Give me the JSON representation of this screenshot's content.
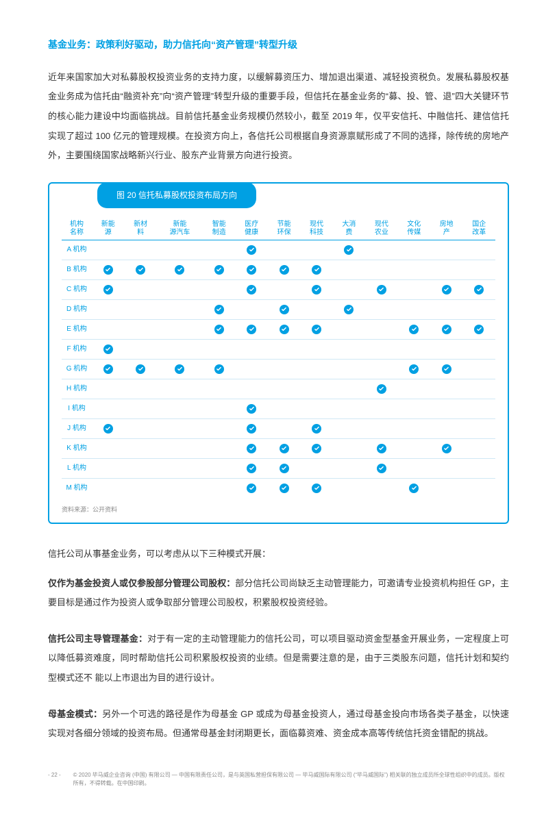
{
  "heading": "基金业务：政策利好驱动，助力信托向“资产管理”转型升级",
  "para1": "近年来国家加大对私募股权投资业务的支持力度，以缓解募资压力、增加退出渠道、减轻投资税负。发展私募股权基金业务成为信托由“融资补充”向“资产管理”转型升级的重要手段，但信托在基金业务的“募、投、管、退”四大关键环节的核心能力建设中均面临挑战。目前信托基金业务规模仍然较小，截至 2019 年，仅平安信托、中融信托、建信信托实现了超过 100 亿元的管理规模。在投资方向上，各信托公司根据自身资源禀赋形成了不同的选择，除传统的房地产外，主要围绕国家战略新兴行业、股东产业背景方向进行投资。",
  "chart": {
    "title": "图 20 信托私募股权投资布局方向",
    "source": "资料来源：公开资料",
    "columns": [
      "机构名称",
      "新能源",
      "新材料",
      "新能源汽车",
      "智能制造",
      "医疗健康",
      "节能环保",
      "现代科技",
      "大消费",
      "现代农业",
      "文化传媒",
      "房地产",
      "国企改革"
    ],
    "rows": [
      {
        "label": "A 机构",
        "cells": [
          0,
          0,
          0,
          0,
          1,
          0,
          0,
          1,
          0,
          0,
          0,
          0
        ]
      },
      {
        "label": "B 机构",
        "cells": [
          1,
          1,
          1,
          1,
          1,
          1,
          1,
          0,
          0,
          0,
          0,
          0
        ]
      },
      {
        "label": "C 机构",
        "cells": [
          1,
          0,
          0,
          0,
          1,
          0,
          1,
          0,
          1,
          0,
          1,
          1
        ]
      },
      {
        "label": "D 机构",
        "cells": [
          0,
          0,
          0,
          1,
          0,
          1,
          0,
          1,
          0,
          0,
          0,
          0
        ]
      },
      {
        "label": "E 机构",
        "cells": [
          0,
          0,
          0,
          1,
          1,
          1,
          1,
          0,
          0,
          1,
          1,
          1
        ]
      },
      {
        "label": "F 机构",
        "cells": [
          1,
          0,
          0,
          0,
          0,
          0,
          0,
          0,
          0,
          0,
          0,
          0
        ]
      },
      {
        "label": "G 机构",
        "cells": [
          1,
          1,
          1,
          1,
          0,
          0,
          0,
          0,
          0,
          1,
          1,
          0
        ]
      },
      {
        "label": "H 机构",
        "cells": [
          0,
          0,
          0,
          0,
          0,
          0,
          0,
          0,
          1,
          0,
          0,
          0
        ]
      },
      {
        "label": "I 机构",
        "cells": [
          0,
          0,
          0,
          0,
          1,
          0,
          0,
          0,
          0,
          0,
          0,
          0
        ]
      },
      {
        "label": "J 机构",
        "cells": [
          1,
          0,
          0,
          0,
          1,
          0,
          1,
          0,
          0,
          0,
          0,
          0
        ]
      },
      {
        "label": "K 机构",
        "cells": [
          0,
          0,
          0,
          0,
          1,
          1,
          1,
          0,
          1,
          0,
          1,
          0
        ]
      },
      {
        "label": "L 机构",
        "cells": [
          0,
          0,
          0,
          0,
          1,
          1,
          0,
          0,
          1,
          0,
          0,
          0
        ]
      },
      {
        "label": "M 机构",
        "cells": [
          0,
          0,
          0,
          0,
          1,
          1,
          1,
          0,
          0,
          1,
          0,
          0
        ]
      }
    ],
    "check_color": "#00a0e3",
    "border_color": "#00a0e3",
    "header_color": "#00a0e3",
    "row_border": "#d0e8f5"
  },
  "intro2": "信托公司从事基金业务，可以考虑从以下三种模式开展：",
  "bullets": [
    {
      "title": "仅作为基金投资人或仅参股部分管理公司股权：",
      "body": "部分信托公司尚缺乏主动管理能力，可邀请专业投资机构担任 GP，主要目标是通过作为投资人或争取部分管理公司股权，积累股权投资经验。"
    },
    {
      "title": "信托公司主导管理基金：",
      "body": "对于有一定的主动管理能力的信托公司，可以项目驱动资金型基金开展业务，一定程度上可以降低募资难度，同时帮助信托公司积累股权投资的业绩。但是需要注意的是，由于三类股东问题，信托计划和契约型模式还不 能以上市退出为目的进行设计。"
    },
    {
      "title": "母基金模式：",
      "body": "另外一个可选的路径是作为母基金 GP 或成为母基金投资人，通过母基金投向市场各类子基金，以快速实现对各细分领域的投资布局。但通常母基金封闭期更长，面临募资难、资金成本高等传统信托资金错配的挑战。"
    }
  ],
  "footer": {
    "page": "- 22 -",
    "copyright": "© 2020 毕马威企业咨询 (中国) 有限公司 — 中国有限责任公司，是与英国私营担保有限公司 — 毕马威国际有限公司 (“毕马威国际”) 相关联的独立成员所全球性组织中的成员。版权所有，不得转载。在中国印刷。"
  }
}
